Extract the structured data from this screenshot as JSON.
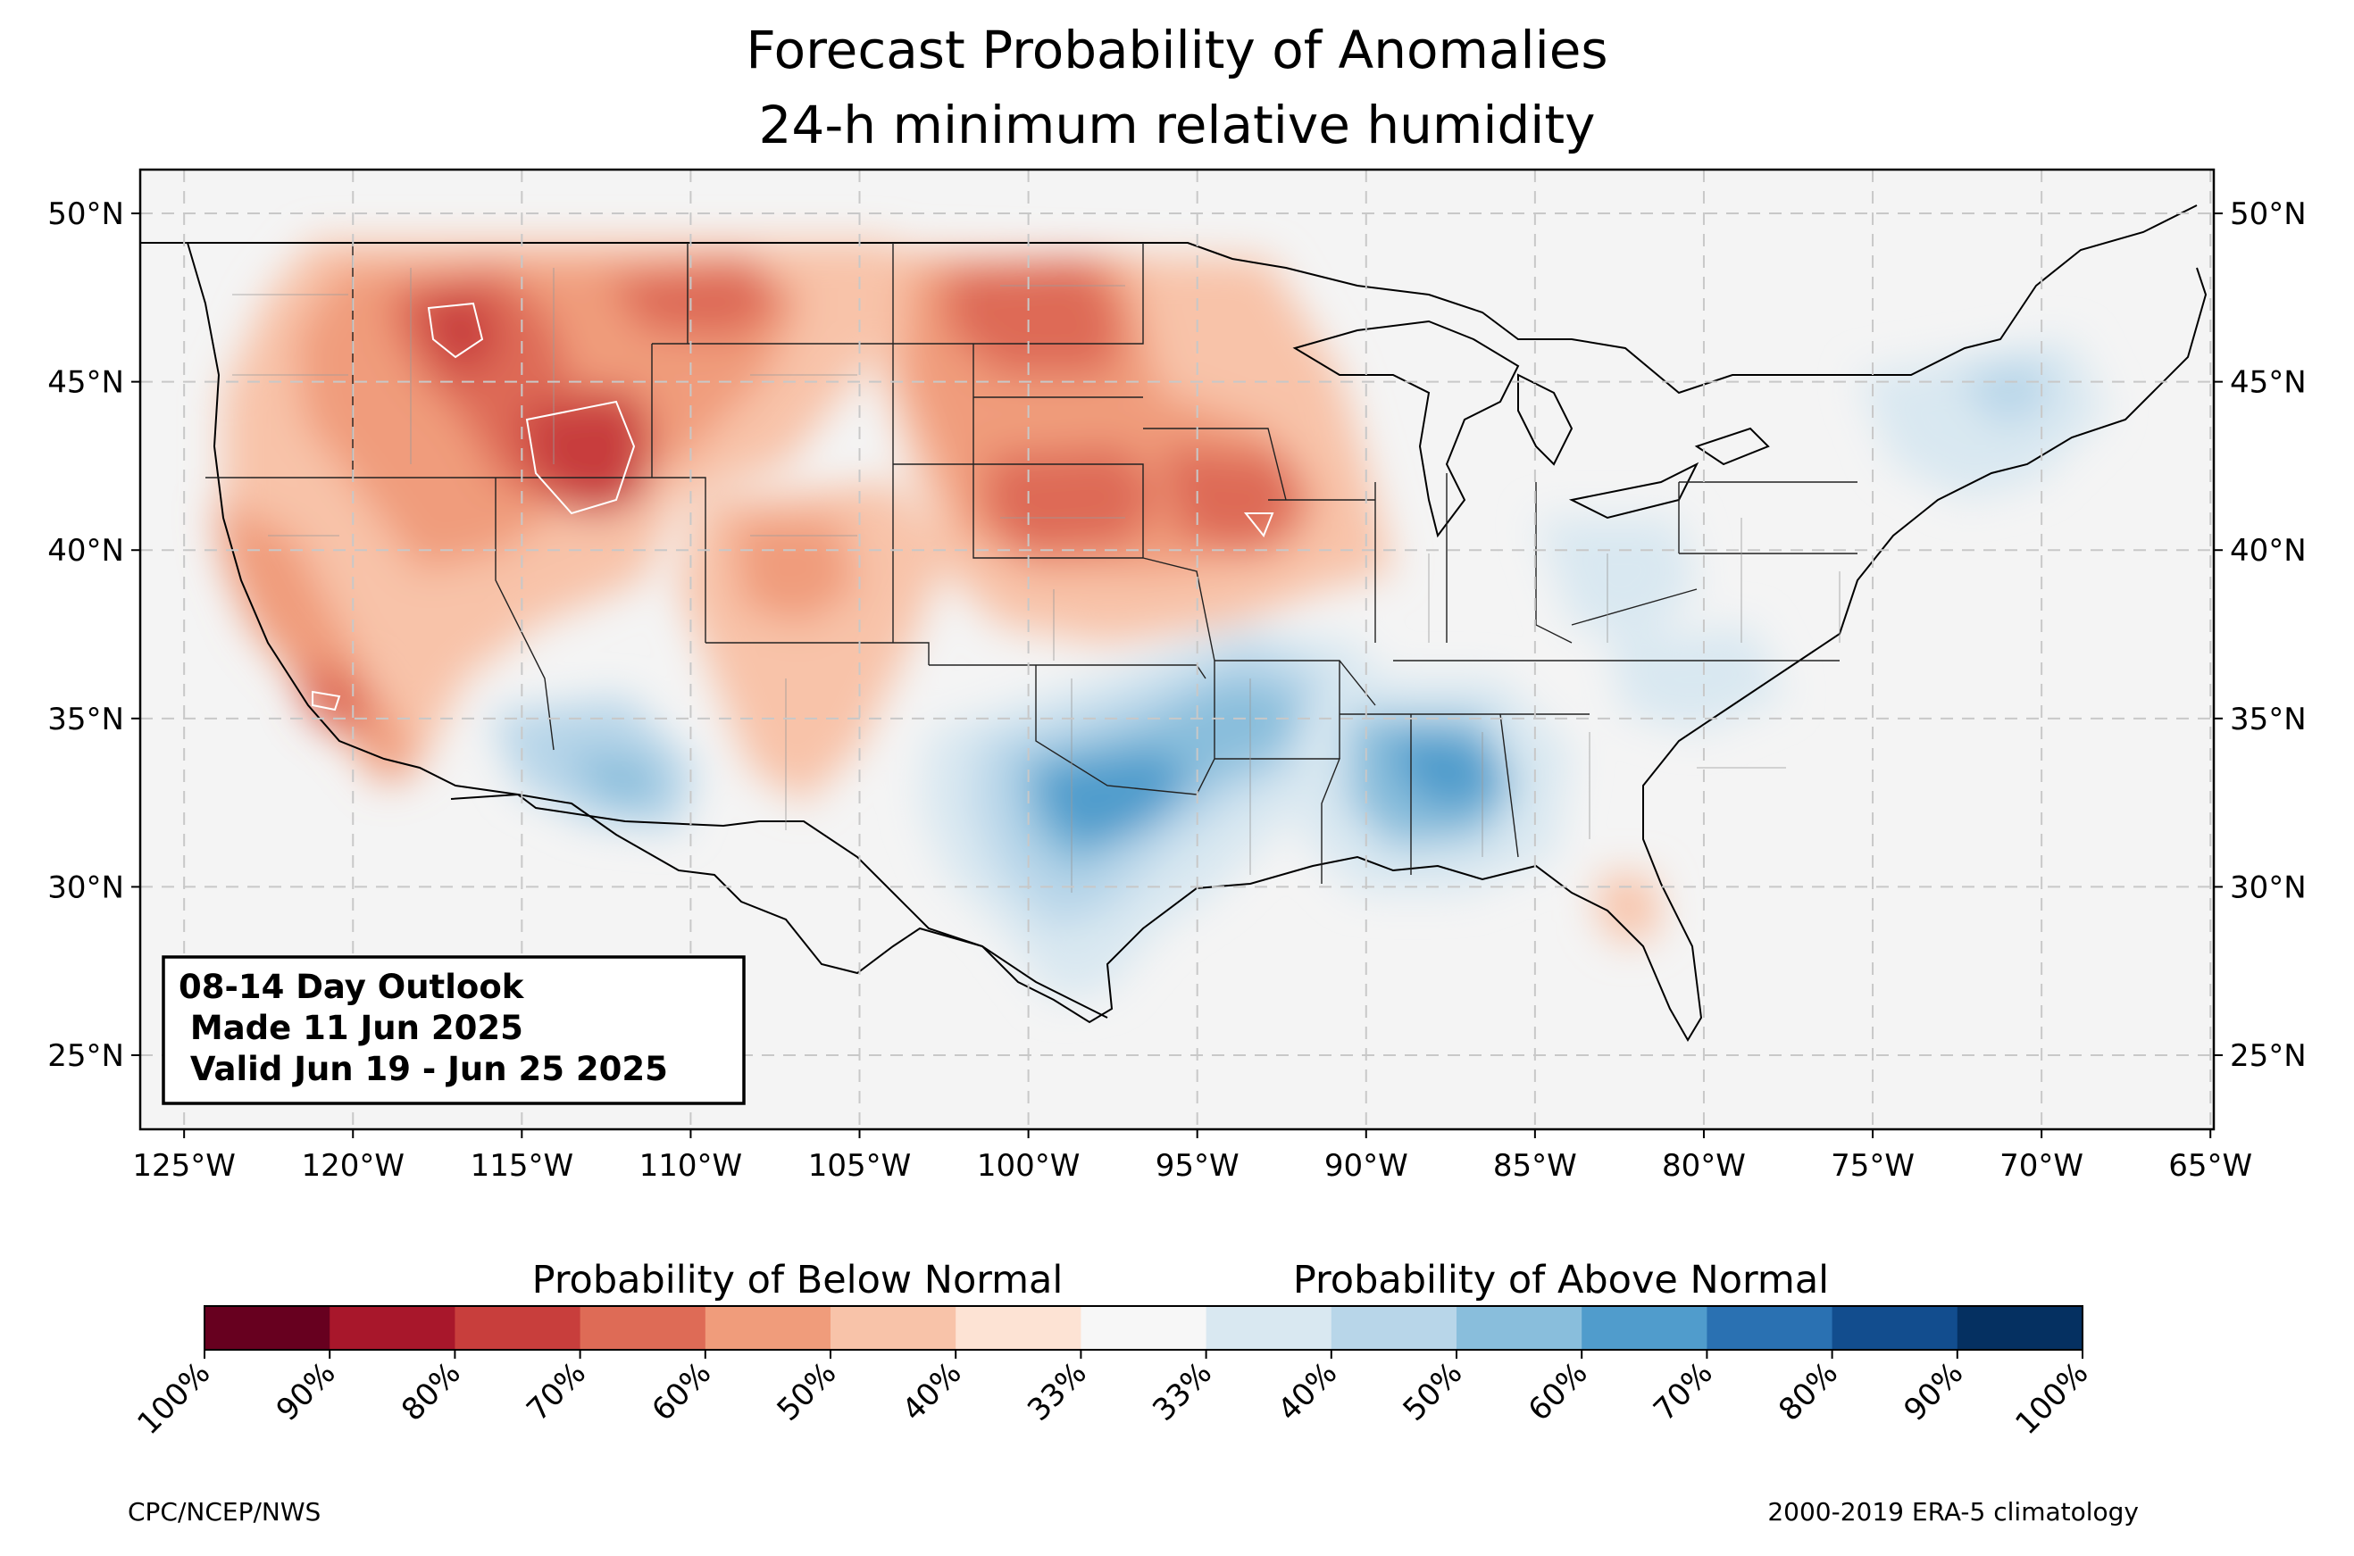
{
  "title": {
    "line1": "Forecast Probability of Anomalies",
    "line2": "24-h minimum relative humidity"
  },
  "map": {
    "projection": "equirectangular",
    "lon_range": [
      -126.3,
      -64.9
    ],
    "lat_range": [
      22.8,
      51.3
    ],
    "gridlines": "dashed",
    "background_color": "#f4f4f4",
    "lat_ticks": [
      {
        "value": 50,
        "label": "50°N"
      },
      {
        "value": 45,
        "label": "45°N"
      },
      {
        "value": 40,
        "label": "40°N"
      },
      {
        "value": 35,
        "label": "35°N"
      },
      {
        "value": 30,
        "label": "30°N"
      },
      {
        "value": 25,
        "label": "25°N"
      }
    ],
    "lon_ticks": [
      {
        "value": -125,
        "label": "125°W"
      },
      {
        "value": -120,
        "label": "120°W"
      },
      {
        "value": -115,
        "label": "115°W"
      },
      {
        "value": -110,
        "label": "110°W"
      },
      {
        "value": -105,
        "label": "105°W"
      },
      {
        "value": -100,
        "label": "100°W"
      },
      {
        "value": -95,
        "label": "95°W"
      },
      {
        "value": -90,
        "label": "90°W"
      },
      {
        "value": -85,
        "label": "85°W"
      },
      {
        "value": -80,
        "label": "80°W"
      },
      {
        "value": -75,
        "label": "75°W"
      },
      {
        "value": -70,
        "label": "70°W"
      },
      {
        "value": -65,
        "label": "65°W"
      }
    ],
    "below_normal_regions": [
      {
        "region": "Idaho / western Montana",
        "lon": -117.0,
        "lat": 46.3,
        "probability": 80
      },
      {
        "region": "Southern Idaho / northern Utah",
        "lon": -113.0,
        "lat": 42.8,
        "probability": 80
      },
      {
        "region": "Eastern Oregon",
        "lon": -117.8,
        "lat": 44.5,
        "probability": 60
      },
      {
        "region": "Central Montana",
        "lon": -110.0,
        "lat": 47.5,
        "probability": 60
      },
      {
        "region": "North Dakota",
        "lon": -100.0,
        "lat": 47.3,
        "probability": 60
      },
      {
        "region": "South Dakota",
        "lon": -99.0,
        "lat": 44.6,
        "probability": 60
      },
      {
        "region": "Nebraska / Kansas",
        "lon": -98.5,
        "lat": 40.8,
        "probability": 60
      },
      {
        "region": "Iowa",
        "lon": -93.0,
        "lat": 40.6,
        "probability": 70
      },
      {
        "region": "Southern California",
        "lon": -119.5,
        "lat": 35.2,
        "probability": 60
      },
      {
        "region": "Western Colorado",
        "lon": -107.5,
        "lat": 40.0,
        "probability": 50
      },
      {
        "region": "New Mexico",
        "lon": -104.8,
        "lat": 34.5,
        "probability": 40
      },
      {
        "region": "Florida",
        "lon": -81.0,
        "lat": 29.8,
        "probability": 40
      }
    ],
    "above_normal_regions": [
      {
        "region": "Central / northern Texas",
        "lon": -98.0,
        "lat": 32.0,
        "probability": 60
      },
      {
        "region": "Oklahoma / Arkansas",
        "lon": -93.5,
        "lat": 35.8,
        "probability": 60
      },
      {
        "region": "Mississippi / Alabama",
        "lon": -88.0,
        "lat": 33.2,
        "probability": 60
      },
      {
        "region": "Southern Arizona",
        "lon": -111.0,
        "lat": 32.8,
        "probability": 50
      },
      {
        "region": "Ohio Valley",
        "lon": -84.0,
        "lat": 40.2,
        "probability": 40
      },
      {
        "region": "New England",
        "lon": -72.0,
        "lat": 44.5,
        "probability": 40
      }
    ]
  },
  "outlook_box": {
    "line1": "08-14 Day Outlook",
    "line2": " Made 11 Jun 2025",
    "line3": " Valid Jun 19 - Jun 25 2025"
  },
  "colorbar": {
    "below_label": "Probability of Below Normal",
    "above_label": "Probability of Above Normal",
    "bins": [
      {
        "color": "#67001f"
      },
      {
        "color": "#a8172b"
      },
      {
        "color": "#c83e3c"
      },
      {
        "color": "#de6b56"
      },
      {
        "color": "#f09c7b"
      },
      {
        "color": "#f8c3a9"
      },
      {
        "color": "#fde3d4"
      },
      {
        "color": "#f7f7f7"
      },
      {
        "color": "#d9e8f1"
      },
      {
        "color": "#b8d6e9"
      },
      {
        "color": "#89bedc"
      },
      {
        "color": "#509ccc"
      },
      {
        "color": "#2a71b2"
      },
      {
        "color": "#124d8e"
      },
      {
        "color": "#053061"
      }
    ],
    "tick_labels": [
      "100%",
      "90%",
      "80%",
      "70%",
      "60%",
      "50%",
      "40%",
      "33%",
      "33%",
      "40%",
      "50%",
      "60%",
      "70%",
      "80%",
      "90%",
      "100%"
    ]
  },
  "footer": {
    "left": "CPC/NCEP/NWS",
    "right": "2000-2019 ERA-5 climatology"
  }
}
